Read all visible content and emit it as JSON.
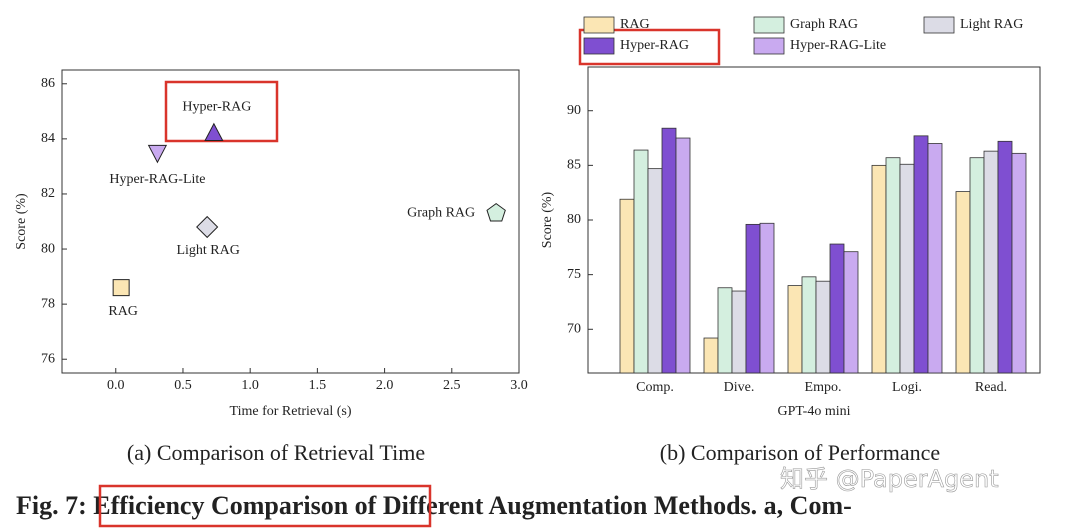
{
  "chart_data": [
    {
      "type": "scatter",
      "caption": "(a) Comparison of Retrieval Time",
      "xlabel": "Time for Retrieval (s)",
      "ylabel": "Score (%)",
      "xlim": [
        -0.4,
        3.0
      ],
      "xticks": [
        {
          "value": 0,
          "label": "0.0"
        },
        {
          "value": 0.5,
          "label": "0.5"
        },
        {
          "value": 1,
          "label": "1.0"
        },
        {
          "value": 1.5,
          "label": "1.5"
        },
        {
          "value": 2,
          "label": "2.0"
        },
        {
          "value": 2.5,
          "label": "2.5"
        },
        {
          "value": 3,
          "label": "3.0"
        }
      ],
      "ylim": [
        75.5,
        86.5
      ],
      "yticks": [
        76,
        78,
        80,
        82,
        84,
        86
      ],
      "series": [
        {
          "name": "RAG",
          "color": "#fbe6b4",
          "marker": "square",
          "x": [
            0.04
          ],
          "values": [
            78.6
          ]
        },
        {
          "name": "Light RAG",
          "color": "#dcdce6",
          "marker": "diamond",
          "x": [
            0.68
          ],
          "values": [
            80.8
          ]
        },
        {
          "name": "Hyper-RAG-Lite",
          "color": "#c9aaf0",
          "marker": "triangle-down",
          "x": [
            0.31
          ],
          "values": [
            83.5
          ]
        },
        {
          "name": "Hyper-RAG",
          "color": "#7f4fd1",
          "marker": "triangle-up",
          "x": [
            0.73
          ],
          "values": [
            84.2
          ]
        },
        {
          "name": "Graph RAG",
          "color": "#d4efdf",
          "marker": "pentagon",
          "x": [
            2.83
          ],
          "values": [
            81.3
          ]
        }
      ]
    },
    {
      "type": "bar",
      "caption": "(b) Comparison of Performance",
      "xlabel": "GPT-4o mini",
      "ylabel": "Score (%)",
      "categories": [
        "Comp.",
        "Dive.",
        "Empo.",
        "Logi.",
        "Read."
      ],
      "ylim": [
        66,
        94
      ],
      "yticks": [
        70,
        75,
        80,
        85,
        90
      ],
      "series": [
        {
          "name": "RAG",
          "color": "#fbe6b4",
          "values": [
            81.9,
            69.2,
            74.0,
            85.0,
            82.6
          ]
        },
        {
          "name": "Graph RAG",
          "color": "#d4efdf",
          "values": [
            86.4,
            73.8,
            74.8,
            85.7,
            85.7
          ]
        },
        {
          "name": "Light RAG",
          "color": "#dcdce6",
          "values": [
            84.7,
            73.5,
            74.4,
            85.1,
            86.3
          ]
        },
        {
          "name": "Hyper-RAG",
          "color": "#7f4fd1",
          "values": [
            88.4,
            79.6,
            77.8,
            87.7,
            87.2
          ]
        },
        {
          "name": "Hyper-RAG-Lite",
          "color": "#c9aaf0",
          "values": [
            87.5,
            79.7,
            77.1,
            87.0,
            86.1
          ]
        }
      ]
    }
  ],
  "figure_caption": "Fig. 7: Efficiency Comparison of Different Augmentation Methods. a, Com-",
  "watermark": "知乎 @PaperAgent"
}
